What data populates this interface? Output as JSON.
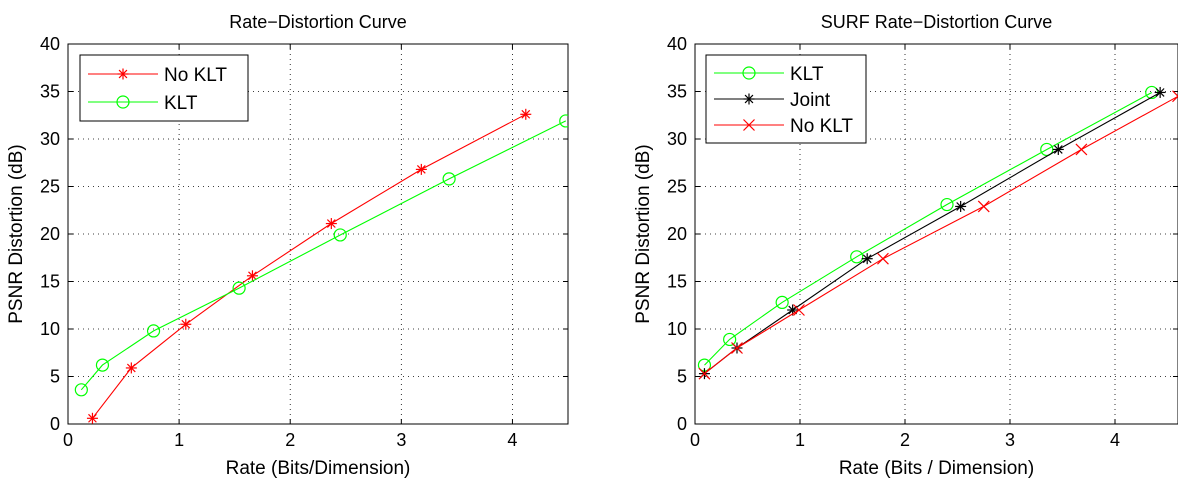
{
  "chart_data": [
    {
      "type": "line",
      "title": "Rate−Distortion Curve",
      "xlabel": "Rate (Bits/Dimension)",
      "ylabel": "PSNR Distortion (dB)",
      "xlim": [
        0,
        4.5
      ],
      "ylim": [
        0,
        40
      ],
      "xticks": [
        "0",
        "1",
        "2",
        "3",
        "4"
      ],
      "yticks": [
        "0",
        "5",
        "10",
        "15",
        "20",
        "25",
        "30",
        "35",
        "40"
      ],
      "grid": "dotted",
      "legend_position": "top-left",
      "series": [
        {
          "name": "No KLT",
          "color": "#ff0000",
          "marker": "asterisk",
          "x": [
            0.22,
            0.57,
            1.06,
            1.66,
            2.37,
            3.18,
            4.12
          ],
          "y": [
            0.6,
            5.9,
            10.5,
            15.6,
            21.1,
            26.8,
            32.6
          ]
        },
        {
          "name": "KLT",
          "color": "#00ff00",
          "marker": "circle",
          "x": [
            0.12,
            0.31,
            0.77,
            1.54,
            2.45,
            3.43,
            4.48
          ],
          "y": [
            3.6,
            6.2,
            9.8,
            14.3,
            19.9,
            25.8,
            31.9
          ]
        }
      ]
    },
    {
      "type": "line",
      "title": "SURF Rate−Distortion Curve",
      "xlabel": "Rate (Bits / Dimension)",
      "ylabel": "PSNR Distortion (dB)",
      "xlim": [
        0,
        4.6
      ],
      "ylim": [
        0,
        40
      ],
      "xticks": [
        "0",
        "1",
        "2",
        "3",
        "4"
      ],
      "yticks": [
        "0",
        "5",
        "10",
        "15",
        "20",
        "25",
        "30",
        "35",
        "40"
      ],
      "grid": "dotted",
      "legend_position": "top-left",
      "series": [
        {
          "name": "KLT",
          "color": "#00ff00",
          "marker": "circle",
          "x": [
            0.09,
            0.33,
            0.83,
            1.54,
            2.4,
            3.35,
            4.35
          ],
          "y": [
            6.2,
            8.9,
            12.8,
            17.6,
            23.1,
            28.9,
            34.9
          ]
        },
        {
          "name": "Joint",
          "color": "#000000",
          "marker": "asterisk",
          "x": [
            0.09,
            0.4,
            0.93,
            1.64,
            2.53,
            3.46,
            4.43
          ],
          "y": [
            5.3,
            8.0,
            12.0,
            17.4,
            22.9,
            28.9,
            34.9
          ]
        },
        {
          "name": "No KLT",
          "color": "#ff0000",
          "marker": "x",
          "x": [
            0.09,
            0.4,
            0.99,
            1.79,
            2.75,
            3.68,
            4.6
          ],
          "y": [
            5.3,
            8.0,
            12.0,
            17.4,
            22.9,
            28.9,
            34.5
          ]
        }
      ]
    }
  ]
}
